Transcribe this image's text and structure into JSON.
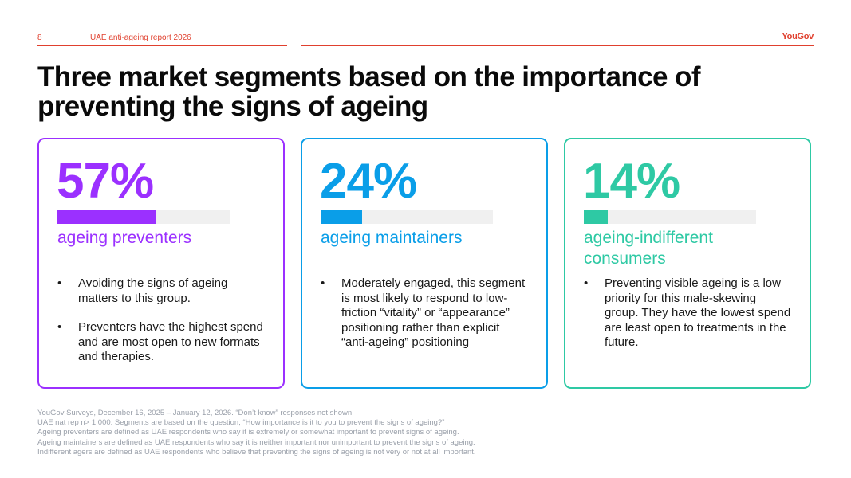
{
  "header": {
    "page_number": "8",
    "report_title": "UAE anti-ageing report 2026",
    "logo": "YouGov",
    "accent_color": "#e0402e"
  },
  "title": {
    "line1": "Three market segments based on the importance of",
    "line2": "preventing the signs of ageing"
  },
  "segments": [
    {
      "percent_label": "57%",
      "percent_value": 57,
      "label_line1": "ageing preventers",
      "label_line2": "",
      "color": "#9b30ff",
      "bullets": [
        "Avoiding the signs of ageing matters to this group.",
        "Preventers have the highest spend and are most open to new formats and therapies."
      ]
    },
    {
      "percent_label": "24%",
      "percent_value": 24,
      "label_line1": "ageing maintainers",
      "label_line2": "",
      "color": "#0a9ee8",
      "bullets": [
        "Moderately engaged, this segment is most likely to respond to low-friction “vitality” or “appearance” positioning rather than explicit “anti-ageing” positioning"
      ]
    },
    {
      "percent_label": "14%",
      "percent_value": 14,
      "label_line1": "ageing-indifferent",
      "label_line2": "consumers",
      "color": "#2ec9a4",
      "bullets": [
        "Preventing visible ageing is a low priority for this male-skewing group. They have the lowest spend are least open to treatments in the future."
      ]
    }
  ],
  "footnotes": [
    "YouGov Surveys, December 16, 2025 – January 12, 2026. “Don’t know” responses not shown.",
    "UAE nat rep n> 1,000. Segments are based on the question, “How importance is it to you to prevent the signs of ageing?”",
    "Ageing preventers are defined as UAE respondents who say it is extremely or somewhat important to prevent signs of ageing.",
    "Ageing maintainers are defined as UAE respondents who say it is neither important nor unimportant to prevent the signs of ageing.",
    "Indifferent agers are defined as UAE respondents who believe that preventing the signs of ageing is not very or not at all important."
  ]
}
